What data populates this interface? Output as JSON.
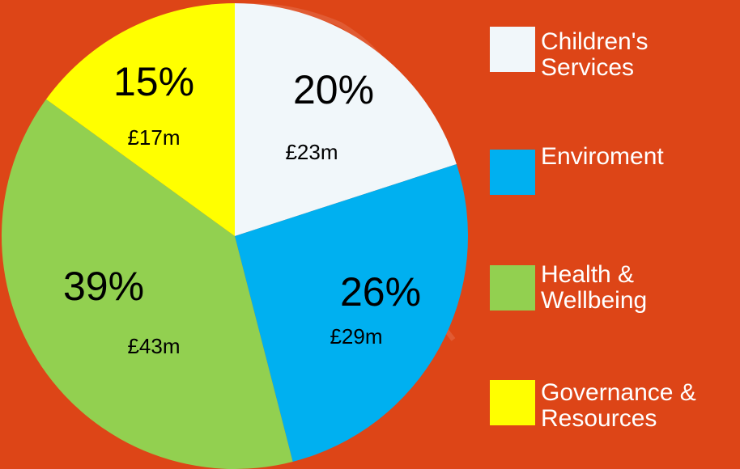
{
  "chart_data": {
    "type": "pie",
    "categories": [
      "Children's Services",
      "Enviroment",
      "Health & Wellbeing",
      "Governance & Resources"
    ],
    "values": [
      20,
      26,
      39,
      15
    ],
    "value_labels": [
      "20%",
      "26%",
      "39%",
      "15%"
    ],
    "amount_labels": [
      "£23m",
      "£29m",
      "£43m",
      "£17m"
    ],
    "colors": [
      "#f1f7fa",
      "#00b0f0",
      "#92d050",
      "#ffff00"
    ],
    "legend": "right"
  }
}
